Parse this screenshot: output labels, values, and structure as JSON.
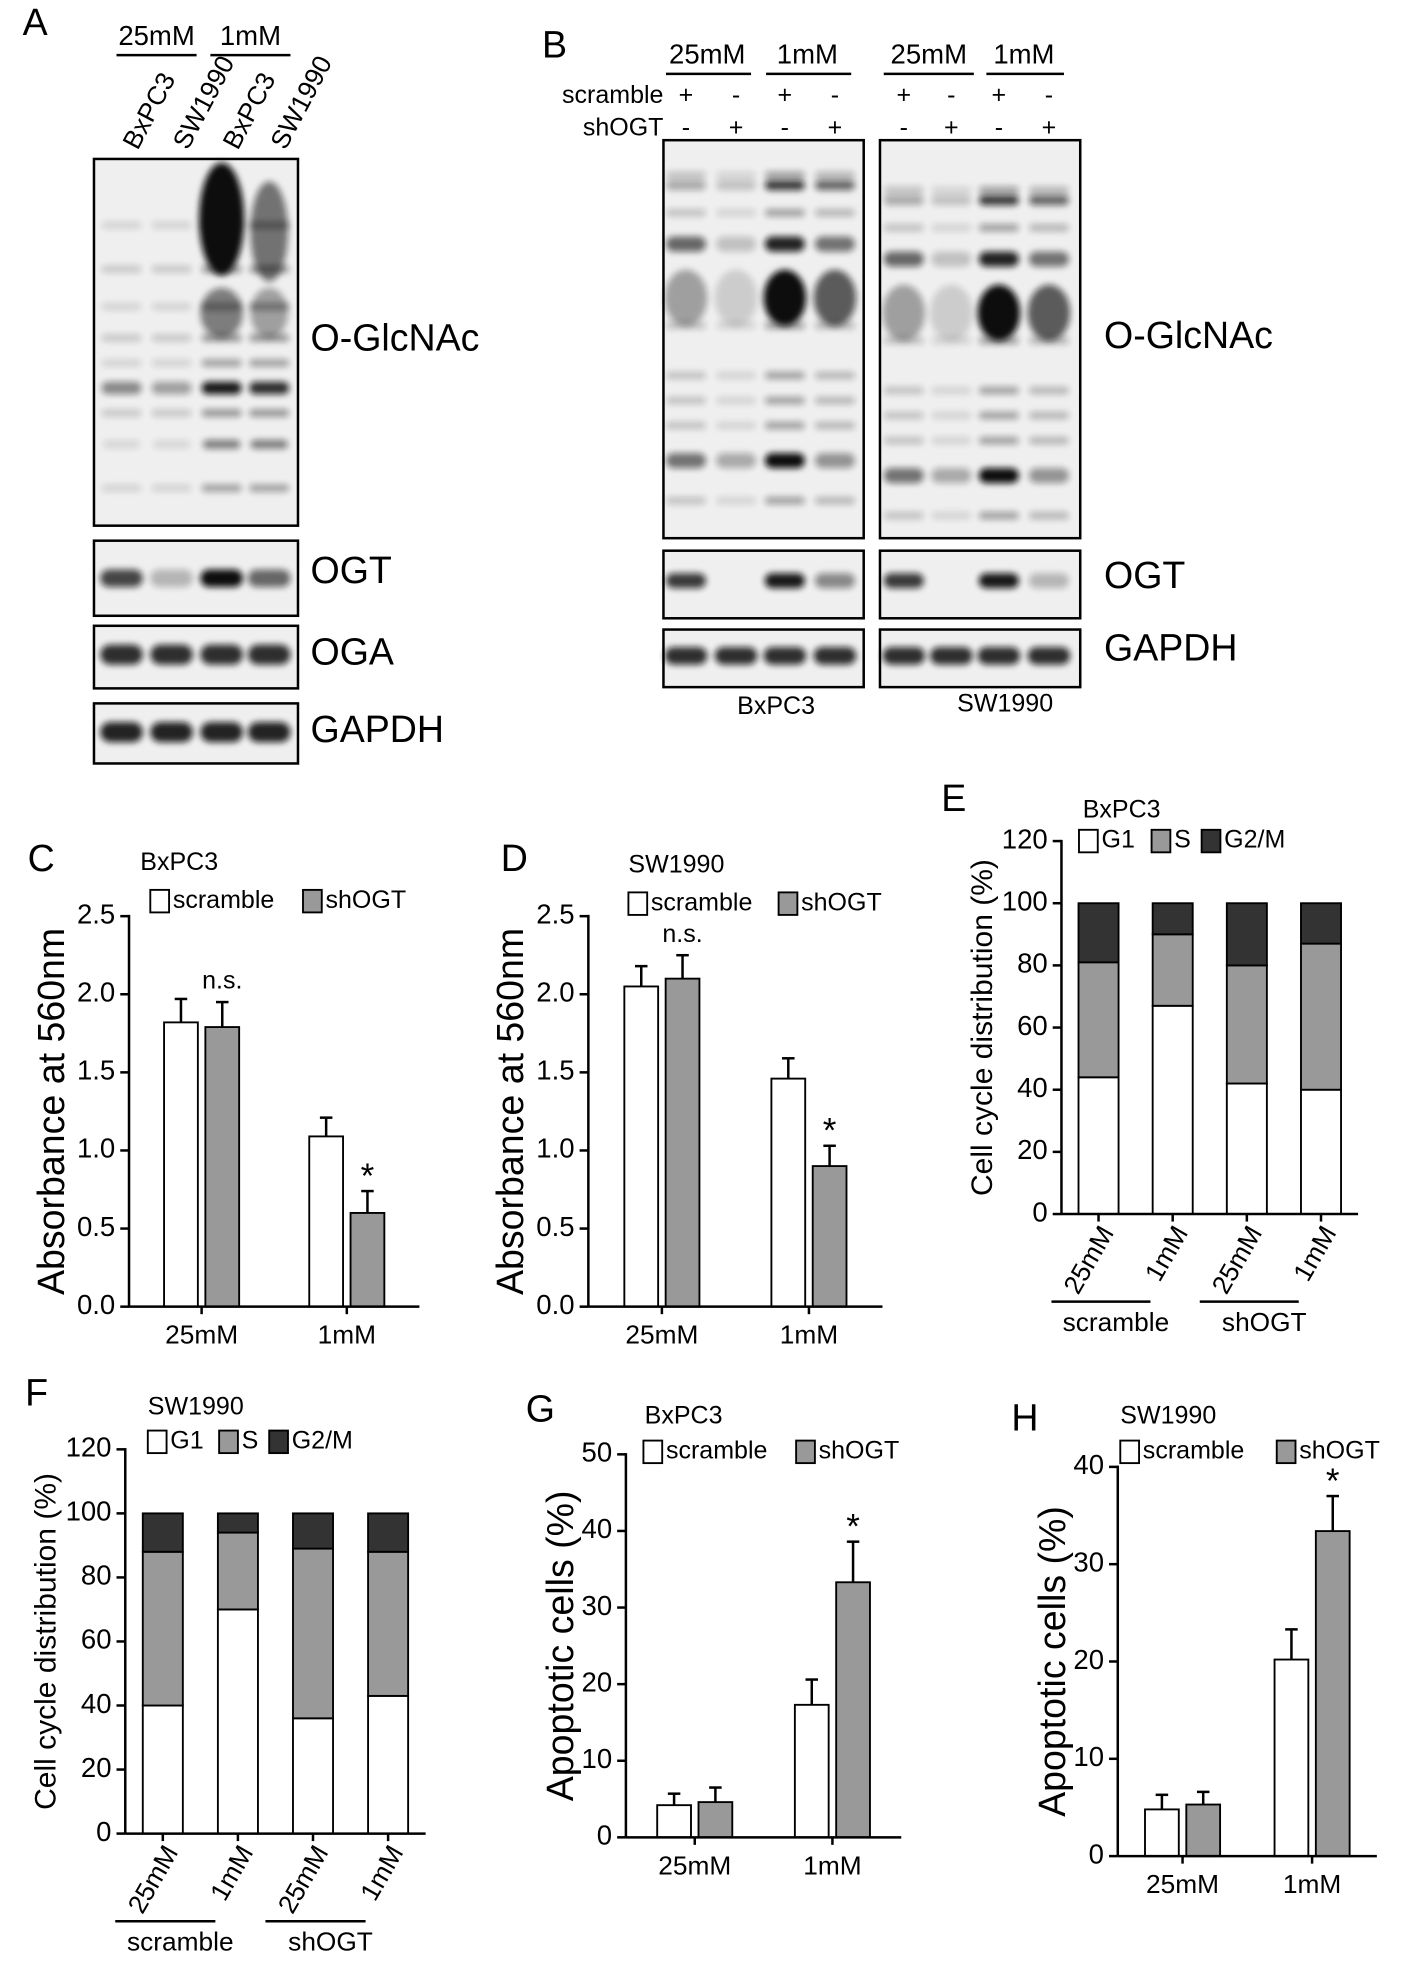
{
  "blot_a": {
    "panel": "A",
    "concentrations": [
      "25mM",
      "1mM"
    ],
    "lanes": [
      "BxPC3",
      "SW1990",
      "BxPC3",
      "SW1990"
    ],
    "proteins": [
      "O-GlcNAc",
      "OGT",
      "OGA",
      "GAPDH"
    ]
  },
  "blot_b": {
    "panel": "B",
    "concentrations": [
      "25mM",
      "1mM",
      "25mM",
      "1mM"
    ],
    "rows": [
      {
        "name": "scramble",
        "signs": [
          "+",
          "-",
          "+",
          "-",
          "+",
          "-",
          "+",
          "-"
        ]
      },
      {
        "name": "shOGT",
        "signs": [
          "-",
          "+",
          "-",
          "+",
          "-",
          "+",
          "-",
          "+"
        ]
      }
    ],
    "proteins": [
      "O-GlcNAc",
      "OGT",
      "GAPDH"
    ],
    "cell_lines": [
      "BxPC3",
      "SW1990"
    ]
  },
  "chart_data": [
    {
      "type": "bar",
      "panel": "C",
      "title": "BxPC3",
      "y_label": "Absorbance at 560nm",
      "categories": [
        "25mM",
        "1mM"
      ],
      "series": [
        {
          "name": "scramble",
          "color": "#ffffff",
          "values": [
            1.82,
            1.09
          ],
          "errors": [
            0.15,
            0.12
          ]
        },
        {
          "name": "shOGT",
          "color": "#999999",
          "values": [
            1.79,
            0.6
          ],
          "errors": [
            0.16,
            0.14
          ]
        }
      ],
      "ylim": [
        0,
        2.5
      ],
      "yticks": [
        {
          "value": 0,
          "label": "0.0"
        },
        0.5,
        {
          "value": 1,
          "label": "1.0"
        },
        1.5,
        {
          "value": 2,
          "label": "2.0"
        },
        2.5
      ],
      "annotations": [
        {
          "text": "n.s.",
          "series": 1,
          "index": 0
        },
        {
          "text": "*",
          "series": 1,
          "index": 1
        }
      ]
    },
    {
      "type": "bar",
      "panel": "D",
      "title": "SW1990",
      "y_label": "Absorbance at 560nm",
      "categories": [
        "25mM",
        "1mM"
      ],
      "series": [
        {
          "name": "scramble",
          "color": "#ffffff",
          "values": [
            2.05,
            1.46
          ],
          "errors": [
            0.13,
            0.13
          ]
        },
        {
          "name": "shOGT",
          "color": "#999999",
          "values": [
            2.1,
            0.9
          ],
          "errors": [
            0.15,
            0.13
          ]
        }
      ],
      "ylim": [
        0,
        2.5
      ],
      "yticks": [
        {
          "value": 0,
          "label": "0.0"
        },
        0.5,
        {
          "value": 1,
          "label": "1.0"
        },
        1.5,
        {
          "value": 2,
          "label": "2.0"
        },
        2.5
      ],
      "annotations": [
        {
          "text": "n.s.",
          "series": 1,
          "index": 0
        },
        {
          "text": "*",
          "series": 1,
          "index": 1
        }
      ]
    },
    {
      "type": "stacked_bar",
      "panel": "E",
      "title": "BxPC3",
      "y_label": "Cell cycle distribution (%)",
      "categories": [
        "25mM",
        "1mM",
        "25mM",
        "1mM"
      ],
      "groups": [
        "scramble",
        "shOGT"
      ],
      "series": [
        {
          "name": "G1",
          "color": "#ffffff",
          "values": [
            44,
            67,
            42,
            40
          ]
        },
        {
          "name": "S",
          "color": "#999999",
          "values": [
            37,
            23,
            38,
            47
          ]
        },
        {
          "name": "G2/M",
          "color": "#333333",
          "values": [
            19,
            10,
            20,
            13
          ]
        }
      ],
      "ylim": [
        0,
        120
      ],
      "yticks": [
        0,
        20,
        40,
        60,
        80,
        100,
        120
      ]
    },
    {
      "type": "stacked_bar",
      "panel": "F",
      "title": "SW1990",
      "y_label": "Cell cycle distribution (%)",
      "categories": [
        "25mM",
        "1mM",
        "25mM",
        "1mM"
      ],
      "groups": [
        "scramble",
        "shOGT"
      ],
      "series": [
        {
          "name": "G1",
          "color": "#ffffff",
          "values": [
            40,
            70,
            36,
            43
          ]
        },
        {
          "name": "S",
          "color": "#999999",
          "values": [
            48,
            24,
            53,
            45
          ]
        },
        {
          "name": "G2/M",
          "color": "#333333",
          "values": [
            12,
            6,
            11,
            12
          ]
        }
      ],
      "ylim": [
        0,
        120
      ],
      "yticks": [
        0,
        20,
        40,
        60,
        80,
        100,
        120
      ]
    },
    {
      "type": "bar",
      "panel": "G",
      "title": "BxPC3",
      "y_label": "Apoptotic cells (%)",
      "categories": [
        "25mM",
        "1mM"
      ],
      "series": [
        {
          "name": "scramble",
          "color": "#ffffff",
          "values": [
            4.2,
            17.3
          ],
          "errors": [
            1.5,
            3.3
          ]
        },
        {
          "name": "shOGT",
          "color": "#999999",
          "values": [
            4.6,
            33.3
          ],
          "errors": [
            1.9,
            5.3
          ]
        }
      ],
      "ylim": [
        0,
        50
      ],
      "yticks": [
        0,
        10,
        20,
        30,
        40,
        50
      ],
      "annotations": [
        {
          "text": "*",
          "series": 1,
          "index": 1
        }
      ]
    },
    {
      "type": "bar",
      "panel": "H",
      "title": "SW1990",
      "y_label": "Apoptotic cells (%)",
      "categories": [
        "25mM",
        "1mM"
      ],
      "series": [
        {
          "name": "scramble",
          "color": "#ffffff",
          "values": [
            4.8,
            20.2
          ],
          "errors": [
            1.5,
            3.1
          ]
        },
        {
          "name": "shOGT",
          "color": "#999999",
          "values": [
            5.3,
            33.4
          ],
          "errors": [
            1.3,
            3.6
          ]
        }
      ],
      "ylim": [
        0,
        40
      ],
      "yticks": [
        0,
        10,
        20,
        30,
        40
      ],
      "annotations": [
        {
          "text": "*",
          "series": 1,
          "index": 1
        }
      ]
    }
  ]
}
